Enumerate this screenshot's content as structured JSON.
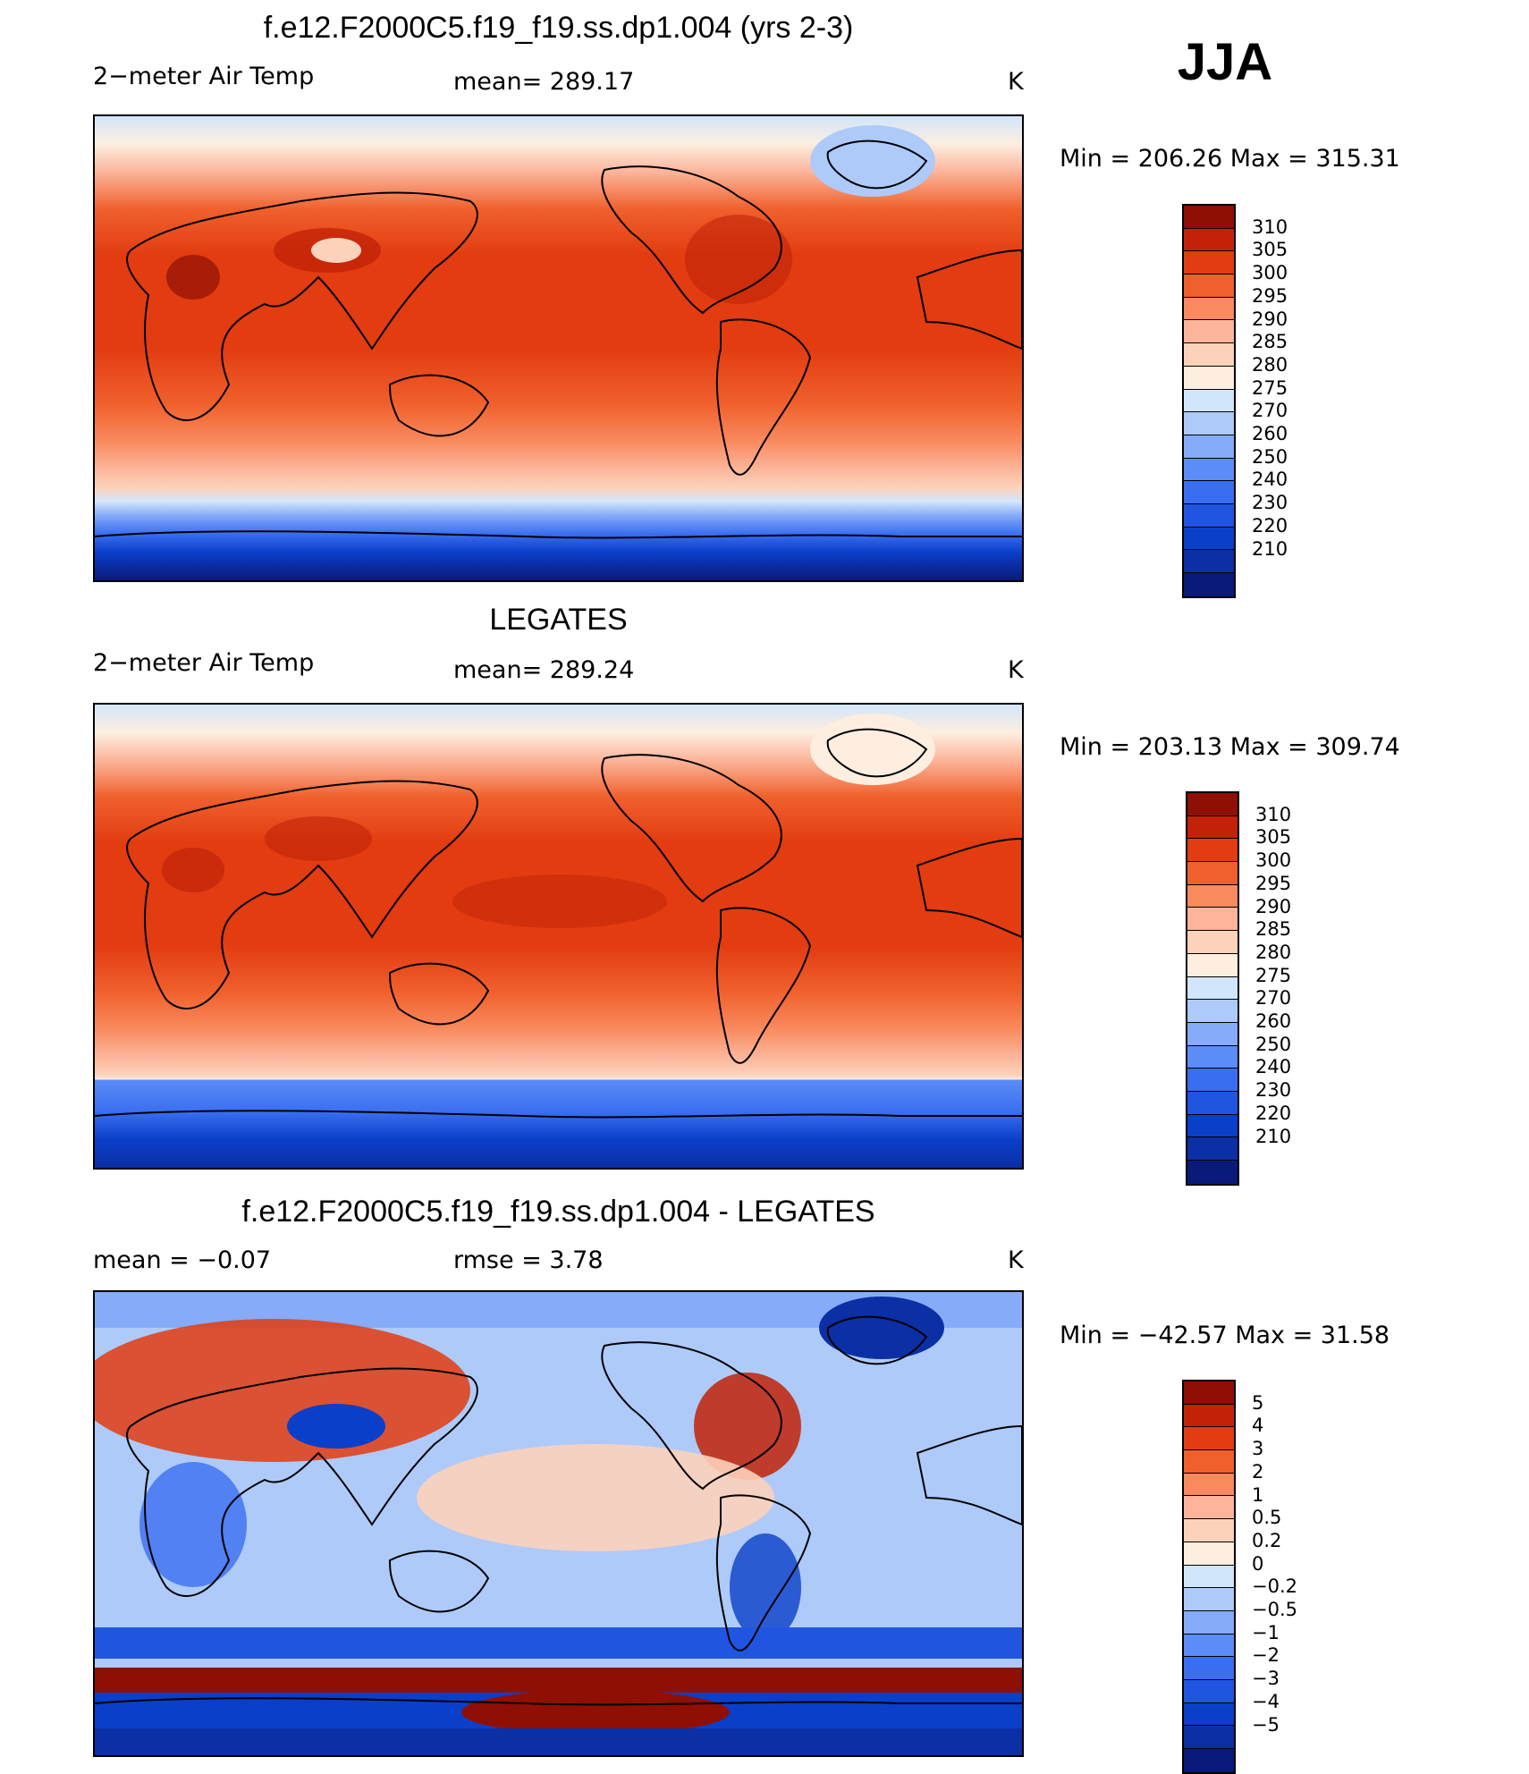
{
  "season": "JJA",
  "colors": {
    "temp_scale": [
      "#0a1a7a",
      "#0b2fa5",
      "#0a3fc9",
      "#1f55e0",
      "#3a6ef0",
      "#5b8cf7",
      "#86abf9",
      "#aecaf9",
      "#d2e6fb",
      "#fdeee0",
      "#fdd2bb",
      "#fcb59a",
      "#f98a5e",
      "#f0602c",
      "#e23c10",
      "#c22308",
      "#8f0f05"
    ],
    "diff_scale": [
      "#0a1a7a",
      "#0b2fa5",
      "#0a3fc9",
      "#1f55e0",
      "#3a6ef0",
      "#5b8cf7",
      "#86abf9",
      "#aecaf9",
      "#d2e6fb",
      "#fdeee0",
      "#fdd2bb",
      "#fcb59a",
      "#f98a5e",
      "#f0602c",
      "#e23c10",
      "#c22308",
      "#8f0f05"
    ]
  },
  "chart_data": [
    {
      "type": "heatmap",
      "title": "f.e12.F2000C5.f19_f19.ss.dp1.004 (yrs 2-3)",
      "left_label": "2−meter Air Temp",
      "center_label": "mean=  289.17",
      "units": "K",
      "min_max": "Min  =  206.26  Max  =  315.31",
      "colorbar_levels": [
        "310",
        "305",
        "300",
        "295",
        "290",
        "285",
        "280",
        "275",
        "270",
        "260",
        "250",
        "240",
        "230",
        "220",
        "210"
      ]
    },
    {
      "type": "heatmap",
      "title": "LEGATES",
      "left_label": "2−meter Air Temp",
      "center_label": "mean=  289.24",
      "units": "K",
      "min_max": "Min  =  203.13  Max  =  309.74",
      "colorbar_levels": [
        "310",
        "305",
        "300",
        "295",
        "290",
        "285",
        "280",
        "275",
        "270",
        "260",
        "250",
        "240",
        "230",
        "220",
        "210"
      ]
    },
    {
      "type": "heatmap",
      "title": "f.e12.F2000C5.f19_f19.ss.dp1.004 - LEGATES",
      "left_label": "mean  =     −0.07",
      "center_label": "rmse  =      3.78",
      "units": "K",
      "min_max": "Min  =  −42.57  Max  =    31.58",
      "colorbar_levels": [
        "5",
        "4",
        "3",
        "2",
        "1",
        "0.5",
        "0.2",
        "0",
        "−0.2",
        "−0.5",
        "−1",
        "−2",
        "−3",
        "−4",
        "−5"
      ]
    }
  ]
}
